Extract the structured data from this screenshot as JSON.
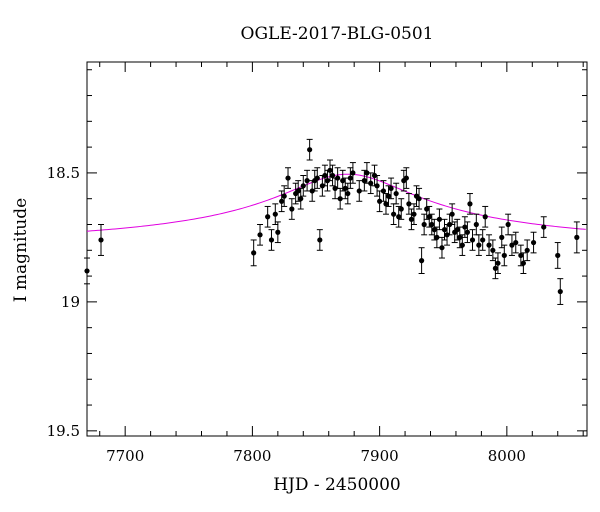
{
  "chart_data": {
    "type": "scatter",
    "title": "OGLE-2017-BLG-0501",
    "xlabel": "HJD - 2450000",
    "ylabel": "I magnitude",
    "xlim": [
      7670,
      8063
    ],
    "ylim": [
      19.52,
      18.07
    ],
    "y_inverted": true,
    "x_ticks": [
      7700,
      7800,
      7900,
      8000
    ],
    "y_ticks": [
      18.5,
      19,
      19.5
    ],
    "x_tick_labels": [
      "7700",
      "7800",
      "7900",
      "8000"
    ],
    "y_tick_labels": [
      "18.5",
      "19",
      "19.5"
    ],
    "grid": false,
    "colors": {
      "points": "#000000",
      "model": "#e000e0",
      "frame": "#000000"
    },
    "model": {
      "name": "",
      "t0": 7875,
      "baseline": 18.805,
      "peak": 18.505,
      "width": 56
    },
    "series": [
      {
        "type": "errorbar-scatter",
        "points": [
          [
            7670,
            18.88,
            0.05
          ],
          [
            7681,
            18.76,
            0.06
          ],
          [
            7801,
            18.81,
            0.05
          ],
          [
            7806,
            18.74,
            0.04
          ],
          [
            7812,
            18.67,
            0.04
          ],
          [
            7815,
            18.76,
            0.04
          ],
          [
            7818,
            18.66,
            0.04
          ],
          [
            7820,
            18.73,
            0.04
          ],
          [
            7823,
            18.61,
            0.04
          ],
          [
            7825,
            18.59,
            0.04
          ],
          [
            7828,
            18.52,
            0.04
          ],
          [
            7831,
            18.64,
            0.04
          ],
          [
            7834,
            18.58,
            0.04
          ],
          [
            7836,
            18.57,
            0.04
          ],
          [
            7838,
            18.6,
            0.04
          ],
          [
            7840,
            18.55,
            0.04
          ],
          [
            7843,
            18.53,
            0.04
          ],
          [
            7845,
            18.41,
            0.04
          ],
          [
            7847,
            18.57,
            0.04
          ],
          [
            7849,
            18.53,
            0.04
          ],
          [
            7851,
            18.52,
            0.04
          ],
          [
            7853,
            18.76,
            0.04
          ],
          [
            7855,
            18.55,
            0.04
          ],
          [
            7857,
            18.51,
            0.04
          ],
          [
            7859,
            18.53,
            0.04
          ],
          [
            7861,
            18.49,
            0.04
          ],
          [
            7863,
            18.51,
            0.04
          ],
          [
            7865,
            18.56,
            0.04
          ],
          [
            7867,
            18.52,
            0.04
          ],
          [
            7869,
            18.6,
            0.04
          ],
          [
            7871,
            18.53,
            0.04
          ],
          [
            7873,
            18.56,
            0.04
          ],
          [
            7875,
            18.58,
            0.04
          ],
          [
            7877,
            18.52,
            0.04
          ],
          [
            7879,
            18.5,
            0.04
          ],
          [
            7884,
            18.57,
            0.04
          ],
          [
            7888,
            18.53,
            0.04
          ],
          [
            7890,
            18.5,
            0.04
          ],
          [
            7893,
            18.54,
            0.04
          ],
          [
            7896,
            18.51,
            0.04
          ],
          [
            7898,
            18.55,
            0.04
          ],
          [
            7900,
            18.61,
            0.04
          ],
          [
            7903,
            18.57,
            0.04
          ],
          [
            7905,
            18.62,
            0.04
          ],
          [
            7907,
            18.59,
            0.04
          ],
          [
            7909,
            18.56,
            0.04
          ],
          [
            7911,
            18.66,
            0.04
          ],
          [
            7913,
            18.58,
            0.04
          ],
          [
            7915,
            18.67,
            0.04
          ],
          [
            7917,
            18.64,
            0.04
          ],
          [
            7919,
            18.53,
            0.04
          ],
          [
            7921,
            18.52,
            0.04
          ],
          [
            7923,
            18.62,
            0.04
          ],
          [
            7925,
            18.68,
            0.04
          ],
          [
            7927,
            18.66,
            0.04
          ],
          [
            7929,
            18.59,
            0.04
          ],
          [
            7931,
            18.6,
            0.04
          ],
          [
            7933,
            18.84,
            0.05
          ],
          [
            7935,
            18.7,
            0.04
          ],
          [
            7937,
            18.64,
            0.04
          ],
          [
            7939,
            18.67,
            0.04
          ],
          [
            7941,
            18.7,
            0.04
          ],
          [
            7943,
            18.72,
            0.04
          ],
          [
            7945,
            18.75,
            0.04
          ],
          [
            7947,
            18.68,
            0.04
          ],
          [
            7949,
            18.79,
            0.04
          ],
          [
            7951,
            18.72,
            0.04
          ],
          [
            7953,
            18.74,
            0.04
          ],
          [
            7955,
            18.7,
            0.04
          ],
          [
            7957,
            18.66,
            0.04
          ],
          [
            7959,
            18.73,
            0.04
          ],
          [
            7961,
            18.72,
            0.04
          ],
          [
            7963,
            18.75,
            0.04
          ],
          [
            7965,
            18.78,
            0.04
          ],
          [
            7967,
            18.71,
            0.04
          ],
          [
            7969,
            18.73,
            0.04
          ],
          [
            7971,
            18.62,
            0.04
          ],
          [
            7973,
            18.76,
            0.04
          ],
          [
            7976,
            18.7,
            0.04
          ],
          [
            7978,
            18.78,
            0.04
          ],
          [
            7981,
            18.76,
            0.04
          ],
          [
            7983,
            18.67,
            0.04
          ],
          [
            7986,
            18.78,
            0.04
          ],
          [
            7989,
            18.8,
            0.04
          ],
          [
            7991,
            18.87,
            0.04
          ],
          [
            7993,
            18.85,
            0.04
          ],
          [
            7996,
            18.75,
            0.04
          ],
          [
            7998,
            18.82,
            0.04
          ],
          [
            8001,
            18.7,
            0.04
          ],
          [
            8004,
            18.78,
            0.04
          ],
          [
            8007,
            18.77,
            0.04
          ],
          [
            8011,
            18.82,
            0.04
          ],
          [
            8013,
            18.85,
            0.04
          ],
          [
            8016,
            18.8,
            0.04
          ],
          [
            8021,
            18.77,
            0.04
          ],
          [
            8029,
            18.71,
            0.04
          ],
          [
            8040,
            18.82,
            0.05
          ],
          [
            8042,
            18.96,
            0.05
          ],
          [
            8055,
            18.75,
            0.06
          ]
        ]
      }
    ]
  }
}
